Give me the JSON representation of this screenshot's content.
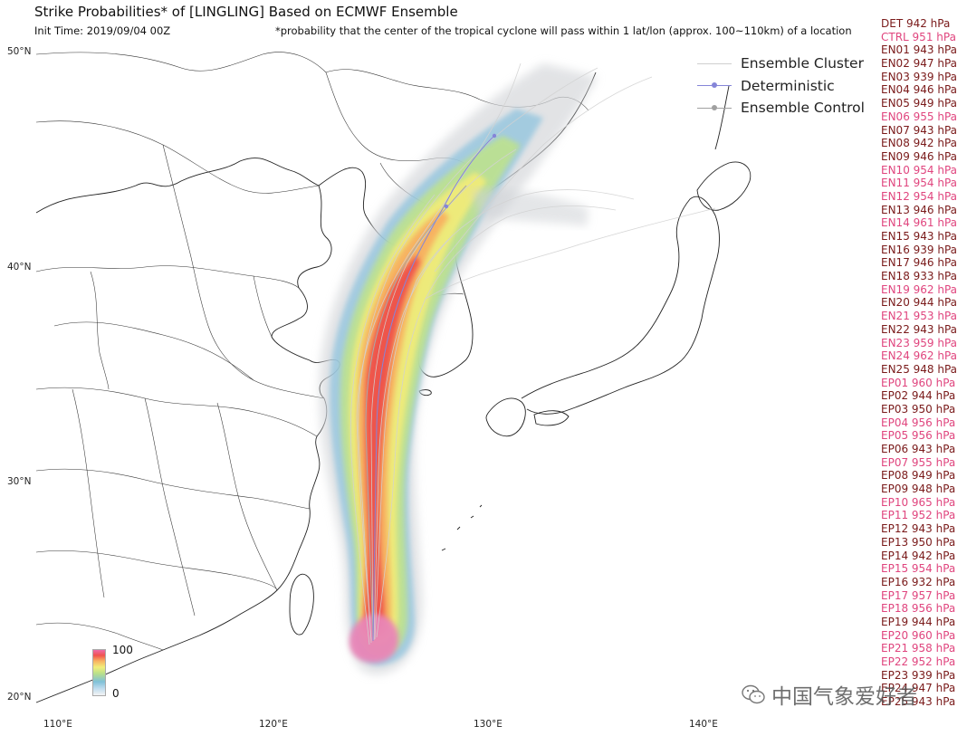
{
  "title": "Strike Probabilities* of [LINGLING] Based on ECMWF Ensemble",
  "init_time": "Init Time: 2019/09/04 00Z",
  "footnote": "*probability that the center of the tropical cyclone will pass within 1 lat/lon (approx. 100~110km) of a location",
  "lat_labels": [
    "50°N",
    "40°N",
    "30°N",
    "20°N"
  ],
  "lon_labels": [
    "110°E",
    "120°E",
    "130°E",
    "140°E"
  ],
  "legend": {
    "cluster": "Ensemble Cluster",
    "deterministic": "Deterministic",
    "control": "Ensemble Control"
  },
  "colors": {
    "pressure_strong": "#7a1a1a",
    "pressure_weak": "#e0457e",
    "deterministic": "#7b7bd6",
    "control": "#a0a0a0",
    "cluster": "#c8c8c8"
  },
  "colorbar": {
    "max": "100",
    "min": "0"
  },
  "pressures": [
    {
      "label": "DET 942 hPa",
      "tone": "strong"
    },
    {
      "label": "CTRL 951 hPa",
      "tone": "weak"
    },
    {
      "label": "EN01 943 hPa",
      "tone": "strong"
    },
    {
      "label": "EN02 947 hPa",
      "tone": "strong"
    },
    {
      "label": "EN03 939 hPa",
      "tone": "strong"
    },
    {
      "label": "EN04 946 hPa",
      "tone": "strong"
    },
    {
      "label": "EN05 949 hPa",
      "tone": "strong"
    },
    {
      "label": "EN06 955 hPa",
      "tone": "weak"
    },
    {
      "label": "EN07 943 hPa",
      "tone": "strong"
    },
    {
      "label": "EN08 942 hPa",
      "tone": "strong"
    },
    {
      "label": "EN09 946 hPa",
      "tone": "strong"
    },
    {
      "label": "EN10 954 hPa",
      "tone": "weak"
    },
    {
      "label": "EN11 954 hPa",
      "tone": "weak"
    },
    {
      "label": "EN12 954 hPa",
      "tone": "weak"
    },
    {
      "label": "EN13 946 hPa",
      "tone": "strong"
    },
    {
      "label": "EN14 961 hPa",
      "tone": "weak"
    },
    {
      "label": "EN15 943 hPa",
      "tone": "strong"
    },
    {
      "label": "EN16 939 hPa",
      "tone": "strong"
    },
    {
      "label": "EN17 946 hPa",
      "tone": "strong"
    },
    {
      "label": "EN18 933 hPa",
      "tone": "strong"
    },
    {
      "label": "EN19 962 hPa",
      "tone": "weak"
    },
    {
      "label": "EN20 944 hPa",
      "tone": "strong"
    },
    {
      "label": "EN21 953 hPa",
      "tone": "weak"
    },
    {
      "label": "EN22 943 hPa",
      "tone": "strong"
    },
    {
      "label": "EN23 959 hPa",
      "tone": "weak"
    },
    {
      "label": "EN24 962 hPa",
      "tone": "weak"
    },
    {
      "label": "EN25 948 hPa",
      "tone": "strong"
    },
    {
      "label": "EP01 960 hPa",
      "tone": "weak"
    },
    {
      "label": "EP02 944 hPa",
      "tone": "strong"
    },
    {
      "label": "EP03 950 hPa",
      "tone": "strong"
    },
    {
      "label": "EP04 956 hPa",
      "tone": "weak"
    },
    {
      "label": "EP05 956 hPa",
      "tone": "weak"
    },
    {
      "label": "EP06 943 hPa",
      "tone": "strong"
    },
    {
      "label": "EP07 955 hPa",
      "tone": "weak"
    },
    {
      "label": "EP08 949 hPa",
      "tone": "strong"
    },
    {
      "label": "EP09 948 hPa",
      "tone": "strong"
    },
    {
      "label": "EP10 965 hPa",
      "tone": "weak"
    },
    {
      "label": "EP11 952 hPa",
      "tone": "weak"
    },
    {
      "label": "EP12 943 hPa",
      "tone": "strong"
    },
    {
      "label": "EP13 950 hPa",
      "tone": "strong"
    },
    {
      "label": "EP14 942 hPa",
      "tone": "strong"
    },
    {
      "label": "EP15 954 hPa",
      "tone": "weak"
    },
    {
      "label": "EP16 932 hPa",
      "tone": "strong"
    },
    {
      "label": "EP17 957 hPa",
      "tone": "weak"
    },
    {
      "label": "EP18 956 hPa",
      "tone": "weak"
    },
    {
      "label": "EP19 944 hPa",
      "tone": "strong"
    },
    {
      "label": "EP20 960 hPa",
      "tone": "weak"
    },
    {
      "label": "EP21 958 hPa",
      "tone": "weak"
    },
    {
      "label": "EP22 952 hPa",
      "tone": "weak"
    },
    {
      "label": "EP23 939 hPa",
      "tone": "strong"
    },
    {
      "label": "EP24 947 hPa",
      "tone": "strong"
    },
    {
      "label": "EP25 943 hPa",
      "tone": "strong"
    }
  ],
  "watermark": "中国气象爱好者"
}
